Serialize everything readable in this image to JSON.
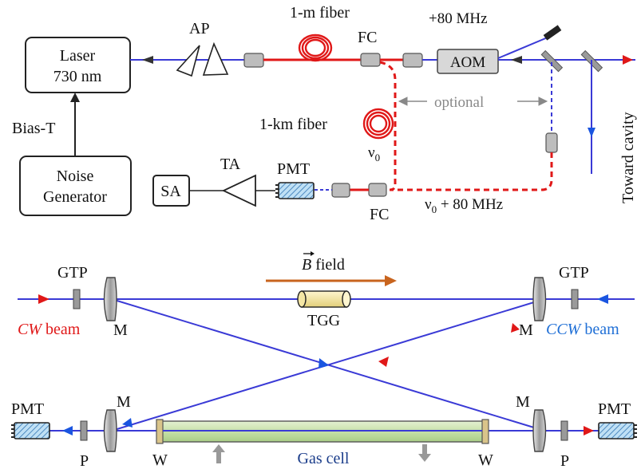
{
  "top_panel": {
    "laser_line1": "Laser",
    "laser_line2": "730 nm",
    "bias_t": "Bias-T",
    "noise_line1": "Noise",
    "noise_line2": "Generator",
    "ap": "AP",
    "fiber_1m": "1-m fiber",
    "fiber_1km": "1-km fiber",
    "fc_top": "FC",
    "fc_bottom": "FC",
    "freq_shift": "+80 MHz",
    "aom": "AOM",
    "optional": "optional",
    "nu0": "ν",
    "nu0_sub": "0",
    "nu0_shift": "ν",
    "nu0_shift_sub": "0",
    "nu0_shift_rest": " + 80 MHz",
    "sa": "SA",
    "ta": "TA",
    "pmt": "PMT",
    "toward_cavity": "Toward cavity"
  },
  "bottom_panel": {
    "b_field_vec": "B",
    "b_field_word": " field",
    "gtp_left": "GTP",
    "gtp_right": "GTP",
    "cw_beam_italic": "CW",
    "cw_beam_rest": " beam",
    "ccw_beam_italic": "CCW",
    "ccw_beam_rest": " beam",
    "tgg": "TGG",
    "m_top_left": "M",
    "m_top_right": "M",
    "m_bottom_left": "M",
    "m_bottom_right": "M",
    "pmt_left": "PMT",
    "pmt_right": "PMT",
    "p_left": "P",
    "p_right": "P",
    "w_left": "W",
    "w_right": "W",
    "gas_cell": "Gas cell"
  },
  "colors": {
    "beam_blue": "#3a3ad6",
    "fiber_red": "#e01818",
    "arrow_red": "#e01818",
    "arrow_blue": "#1a55e0",
    "b_arrow": "#c8641e",
    "gas_cell_fill": "#cfe6b4",
    "optional_gray": "#888888",
    "ccw_blue": "#1f6fd6"
  }
}
